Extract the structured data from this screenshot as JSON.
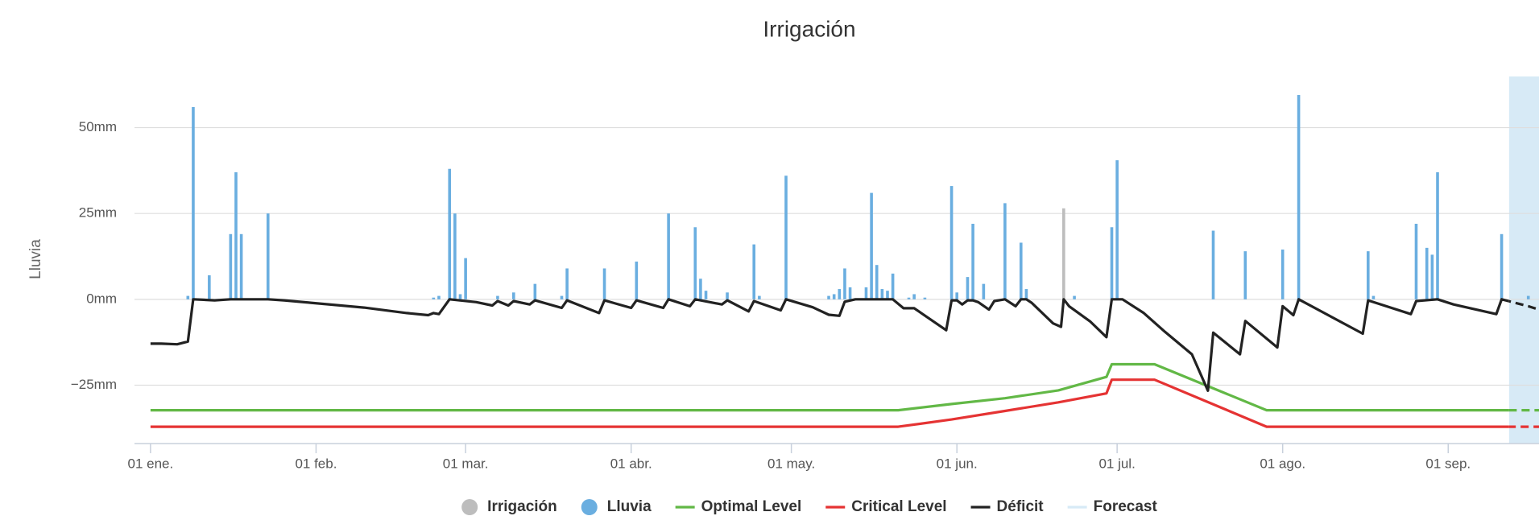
{
  "chart_data": {
    "type": "combo",
    "title": "Irrigación",
    "y_label": "Lluvia",
    "xlim": [
      -3,
      260
    ],
    "xticks": [
      {
        "value": 0,
        "label": "01 ene."
      },
      {
        "value": 31,
        "label": "01 feb."
      },
      {
        "value": 59,
        "label": "01 mar."
      },
      {
        "value": 90,
        "label": "01 abr."
      },
      {
        "value": 120,
        "label": "01 may."
      },
      {
        "value": 151,
        "label": "01 jun."
      },
      {
        "value": 181,
        "label": "01 jul."
      },
      {
        "value": 212,
        "label": "01 ago."
      },
      {
        "value": 243,
        "label": "01 sep."
      }
    ],
    "ylim": [
      -42,
      64.9
    ],
    "yticks": [
      {
        "value": -25,
        "label": "−25mm"
      },
      {
        "value": 0,
        "label": "0mm"
      },
      {
        "value": 25,
        "label": "25mm"
      },
      {
        "value": 50,
        "label": "50mm"
      }
    ],
    "grid": true,
    "legend": "bottom",
    "series": [
      {
        "name": "Irrigación",
        "type": "bar",
        "color": "#bdbdbd",
        "x": [
          171
        ],
        "values": [
          26.5
        ]
      },
      {
        "name": "Lluvia",
        "type": "bar",
        "color": "#6aaee0",
        "x": [
          7,
          8,
          11,
          15,
          16,
          17,
          22,
          53,
          54,
          56,
          57,
          58,
          59,
          65,
          68,
          72,
          77,
          78,
          85,
          91,
          97,
          102,
          103,
          104,
          108,
          113,
          114,
          119,
          127,
          128,
          129,
          130,
          131,
          134,
          135,
          136,
          137,
          138,
          139,
          142,
          143,
          145,
          150,
          151,
          153,
          154,
          156,
          160,
          163,
          164,
          173,
          180,
          181,
          199,
          205,
          212,
          215,
          228,
          229,
          237,
          239,
          240,
          241,
          253,
          258
        ],
        "values": [
          1,
          56,
          7,
          19,
          37,
          19,
          25,
          0.5,
          1,
          38,
          25,
          1.5,
          12,
          1,
          2,
          4.5,
          1,
          9,
          9,
          11,
          25,
          21,
          6,
          2.5,
          2,
          16,
          1,
          36,
          1,
          1.5,
          3,
          9,
          3.5,
          3.5,
          31,
          10,
          3,
          2.5,
          7.5,
          0.5,
          1.5,
          0.5,
          33,
          2,
          6.5,
          22,
          4.5,
          28,
          16.5,
          3,
          1,
          21,
          40.5,
          20,
          14,
          14.5,
          59.5,
          14,
          1,
          22,
          15,
          13,
          37,
          19,
          1
        ]
      },
      {
        "name": "Optimal Level",
        "type": "line",
        "color": "#62b846",
        "x": [
          0,
          140,
          150,
          160,
          170,
          179,
          180,
          188,
          209,
          260
        ],
        "values": [
          -32.3,
          -32.3,
          -30.5,
          -28.8,
          -26.5,
          -22.6,
          -18.9,
          -18.9,
          -32.3,
          -32.3
        ]
      },
      {
        "name": "Critical Level",
        "type": "line",
        "color": "#e53333",
        "x": [
          0,
          140,
          150,
          160,
          170,
          179,
          180,
          188,
          209,
          260
        ],
        "values": [
          -37.1,
          -37.1,
          -35,
          -32.5,
          -30,
          -27.4,
          -23.4,
          -23.4,
          -37.1,
          -37.1
        ]
      },
      {
        "name": "Déficit",
        "type": "line",
        "color": "#222222",
        "x": [
          0,
          2,
          5,
          7,
          8,
          12,
          15,
          18,
          22,
          25,
          30,
          40,
          48,
          52,
          53,
          54,
          56,
          61,
          64,
          65,
          67,
          68,
          71,
          72,
          77,
          78,
          84,
          85,
          90,
          91,
          96,
          97,
          101,
          102,
          107,
          108,
          112,
          113,
          118,
          119,
          124,
          127,
          129,
          130,
          132,
          139,
          141,
          143,
          149,
          150,
          151,
          152,
          153,
          154,
          155,
          157,
          158,
          160,
          162,
          163,
          164,
          165,
          169,
          170.5,
          171,
          172,
          176,
          179,
          180,
          182,
          186,
          190,
          195,
          198,
          199,
          204,
          205,
          211,
          212,
          214,
          215,
          227,
          228,
          236,
          237,
          241,
          244,
          252,
          253,
          258,
          260
        ],
        "values": [
          -12.9,
          -12.9,
          -13.1,
          -12.3,
          0,
          -0.3,
          0,
          0,
          0,
          -0.3,
          -1,
          -2.4,
          -4,
          -4.6,
          -4,
          -4.3,
          0,
          -0.8,
          -1.8,
          -0.5,
          -1.8,
          -0.5,
          -1.5,
          -0.3,
          -2.5,
          -0.3,
          -4,
          -0.3,
          -2.5,
          -0.3,
          -2.5,
          0,
          -2,
          0,
          -1.5,
          -0.3,
          -3.5,
          -0.5,
          -3.2,
          0,
          -2.3,
          -4.5,
          -4.8,
          -0.7,
          0,
          0,
          -2.6,
          -2.6,
          -9,
          -0.3,
          -0.3,
          -1.5,
          -0.3,
          -0.3,
          -0.8,
          -3,
          -0.5,
          0,
          -2,
          0,
          0,
          -1,
          -7,
          -8,
          0,
          -2,
          -6.5,
          -11,
          0,
          0,
          -4,
          -9.5,
          -16,
          -26.6,
          -9.7,
          -16,
          -6.3,
          -14,
          -2,
          -4.6,
          0,
          -10,
          -0.3,
          -4.3,
          -0.5,
          0,
          -1.5,
          -4.3,
          0,
          -2,
          -3
        ]
      },
      {
        "name": "Forecast",
        "type": "band",
        "color": "#d7eaf6",
        "x": [
          254.4,
          260
        ]
      }
    ]
  }
}
